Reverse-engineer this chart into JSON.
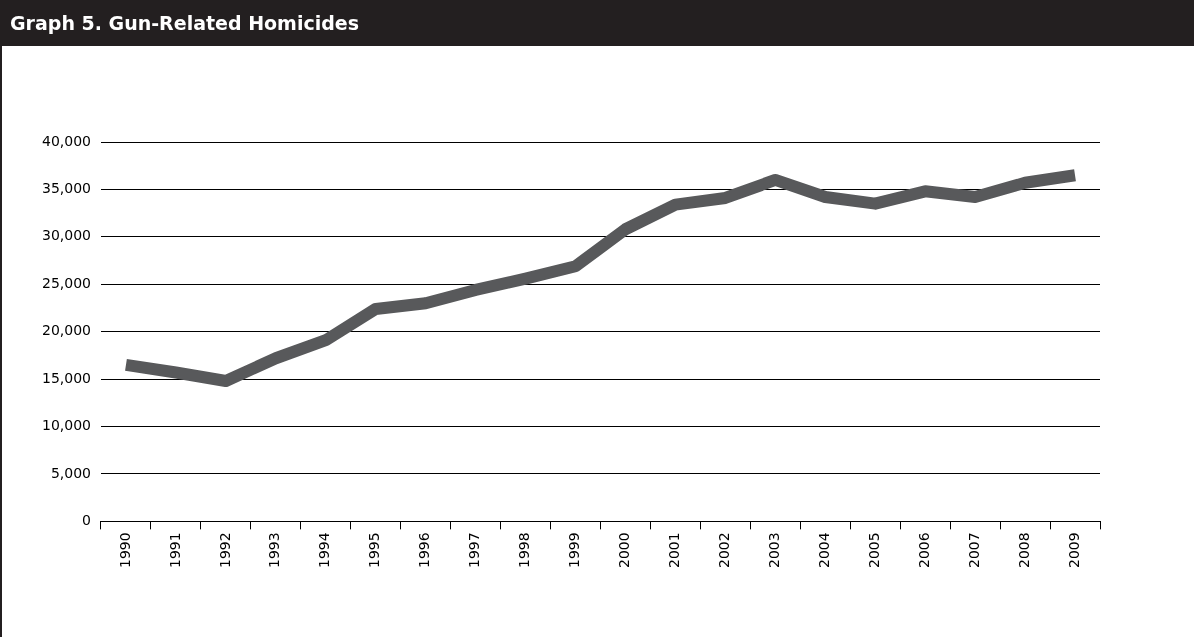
{
  "chart_data": {
    "type": "line",
    "title": "Graph 5.  Gun-Related Homicides",
    "categories": [
      "1990",
      "1991",
      "1992",
      "1993",
      "1994",
      "1995",
      "1996",
      "1997",
      "1998",
      "1999",
      "2000",
      "2001",
      "2002",
      "2003",
      "2004",
      "2005",
      "2006",
      "2007",
      "2008",
      "2009"
    ],
    "series": [
      {
        "color": "#58595b",
        "values": [
          16500,
          15700,
          14800,
          17200,
          19100,
          22400,
          23000,
          24400,
          25600,
          26900,
          30800,
          33400,
          34100,
          36000,
          34200,
          33500,
          34800,
          34200,
          35700,
          36500
        ]
      }
    ],
    "ylim": [
      0,
      40000
    ],
    "yticks": [
      0,
      {
        "value": 5000,
        "label": "5,000"
      },
      {
        "value": 10000,
        "label": "10,000"
      },
      {
        "value": 15000,
        "label": "15,000"
      },
      {
        "value": 20000,
        "label": "20,000"
      },
      {
        "value": 25000,
        "label": "25,000"
      },
      {
        "value": 30000,
        "label": "30,000"
      },
      {
        "value": 35000,
        "label": "35,000"
      },
      {
        "value": 40000,
        "label": "40,000"
      }
    ],
    "grid": "y",
    "legend": false,
    "marker": "none",
    "line_style": "solid"
  }
}
